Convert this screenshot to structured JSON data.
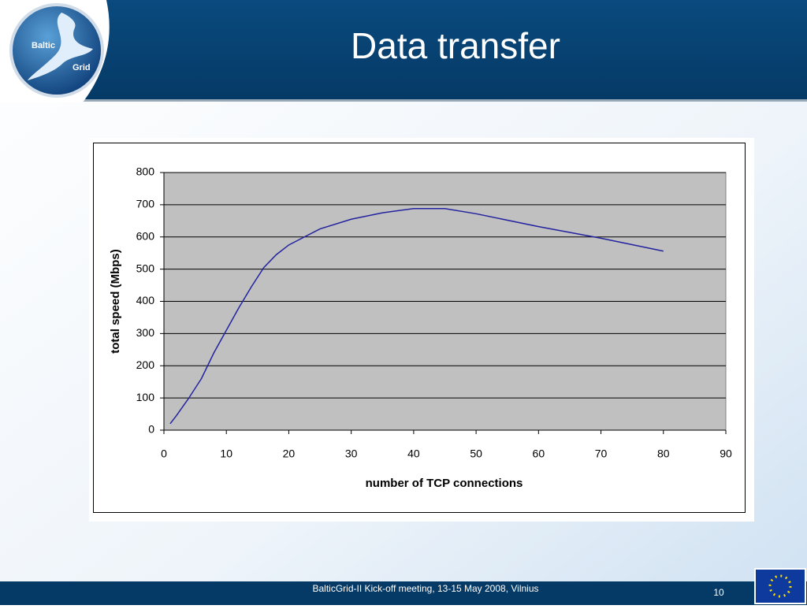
{
  "header": {
    "title": "Data transfer",
    "logo": {
      "top": "Baltic",
      "bottom": "Grid"
    }
  },
  "footer": {
    "text": "BalticGrid-II Kick-off meeting, 13-15 May 2008, Vilnius",
    "page": 10
  },
  "chart_data": {
    "type": "line",
    "x_label": "number of TCP connections",
    "y_label": "total speed (Mbps)",
    "x": [
      1,
      2,
      4,
      6,
      8,
      10,
      12,
      14,
      16,
      18,
      20,
      25,
      30,
      35,
      40,
      45,
      50,
      60,
      70,
      80
    ],
    "values": [
      20,
      45,
      100,
      160,
      240,
      310,
      380,
      445,
      505,
      545,
      575,
      625,
      655,
      675,
      688,
      688,
      672,
      632,
      596,
      556
    ],
    "color": "#2323a0",
    "xlim": [
      0,
      90
    ],
    "xticks": [
      0,
      10,
      20,
      30,
      40,
      50,
      60,
      70,
      80,
      90
    ],
    "ylim": [
      0,
      800
    ],
    "yticks": [
      0,
      100,
      200,
      300,
      400,
      500,
      600,
      700,
      800
    ],
    "grid": true
  }
}
